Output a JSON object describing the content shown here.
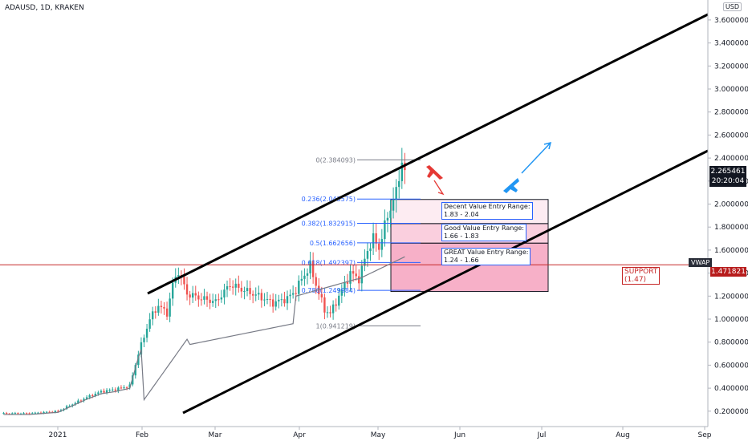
{
  "header": {
    "symbol": "ADAUSD, 1D, KRAKEN"
  },
  "currency": "USD",
  "last_price": {
    "value": "2.265461",
    "countdown": "20:20:04"
  },
  "vwap_label": "VWAP",
  "support_price": "1.471821",
  "support_label": {
    "line1": "SUPPORT",
    "line2": "(1.47)"
  },
  "zones": [
    {
      "line1": "Decent Value Entry Range:",
      "line2": "1.83 - 2.04",
      "lo": 1.83,
      "hi": 2.04,
      "color": "#fce4ec"
    },
    {
      "line1": "Good Value Entry Range:",
      "line2": "1.66 - 1.83",
      "lo": 1.66,
      "hi": 1.83,
      "color": "#f8bbd0"
    },
    {
      "line1": "GREAT Value Entry Range:",
      "line2": "1.24 - 1.66",
      "lo": 1.24,
      "hi": 1.66,
      "color": "#f48fb1"
    }
  ],
  "colors": {
    "up": "#26a69a",
    "down": "#ef5350",
    "support": "#c62828",
    "fib": "#2962ff",
    "arrow_up": "#2196f3",
    "arrow_down": "#e53935"
  },
  "icons": [
    "airplane-down-icon",
    "airplane-up-icon"
  ],
  "chart_data": {
    "type": "candlestick",
    "y_range": [
      0.1,
      3.7
    ],
    "y_ticks": [
      "3.600000",
      "3.400000",
      "3.200000",
      "3.000000",
      "2.800000",
      "2.600000",
      "2.400000",
      "2.200000",
      "2.000000",
      "1.800000",
      "1.600000",
      "1.400000",
      "1.200000",
      "1.000000",
      "0.800000",
      "0.600000",
      "0.400000",
      "0.200000"
    ],
    "x_ticks": [
      "2021",
      "Feb",
      "Mar",
      "Apr",
      "May",
      "Jun",
      "Jul",
      "Aug",
      "Sep"
    ],
    "fib_levels": [
      {
        "label": "0(2.384093)",
        "value": 2.384093
      },
      {
        "label": "0.236(2.043575)",
        "value": 2.043575
      },
      {
        "label": "0.382(1.832915)",
        "value": 1.832915
      },
      {
        "label": "0.5(1.662656)",
        "value": 1.662656
      },
      {
        "label": "0.618(1.492397)",
        "value": 1.492397
      },
      {
        "label": "0.786(1.249984)",
        "value": 1.249984
      },
      {
        "label": "1(0.941219)",
        "value": 0.941219
      }
    ],
    "support_line": 1.471821,
    "price_path": [
      [
        1,
        0.18
      ],
      [
        10,
        0.18
      ],
      [
        20,
        0.2
      ],
      [
        25,
        0.26
      ],
      [
        30,
        0.32
      ],
      [
        35,
        0.37
      ],
      [
        40,
        0.39
      ],
      [
        45,
        0.42
      ],
      [
        48,
        0.7
      ],
      [
        52,
        1.0
      ],
      [
        55,
        1.12
      ],
      [
        58,
        1.05
      ],
      [
        60,
        1.3
      ],
      [
        62,
        1.42
      ],
      [
        65,
        1.22
      ],
      [
        70,
        1.18
      ],
      [
        75,
        1.15
      ],
      [
        80,
        1.3
      ],
      [
        85,
        1.25
      ],
      [
        90,
        1.2
      ],
      [
        95,
        1.14
      ],
      [
        100,
        1.18
      ],
      [
        103,
        1.25
      ],
      [
        105,
        1.35
      ],
      [
        108,
        1.46
      ],
      [
        110,
        1.3
      ],
      [
        113,
        1.08
      ],
      [
        115,
        1.05
      ],
      [
        120,
        1.3
      ],
      [
        122,
        1.4
      ],
      [
        125,
        1.35
      ],
      [
        128,
        1.6
      ],
      [
        130,
        1.7
      ],
      [
        132,
        1.62
      ],
      [
        135,
        1.9
      ],
      [
        138,
        2.1
      ],
      [
        140,
        2.38
      ],
      [
        141,
        2.27
      ]
    ]
  }
}
